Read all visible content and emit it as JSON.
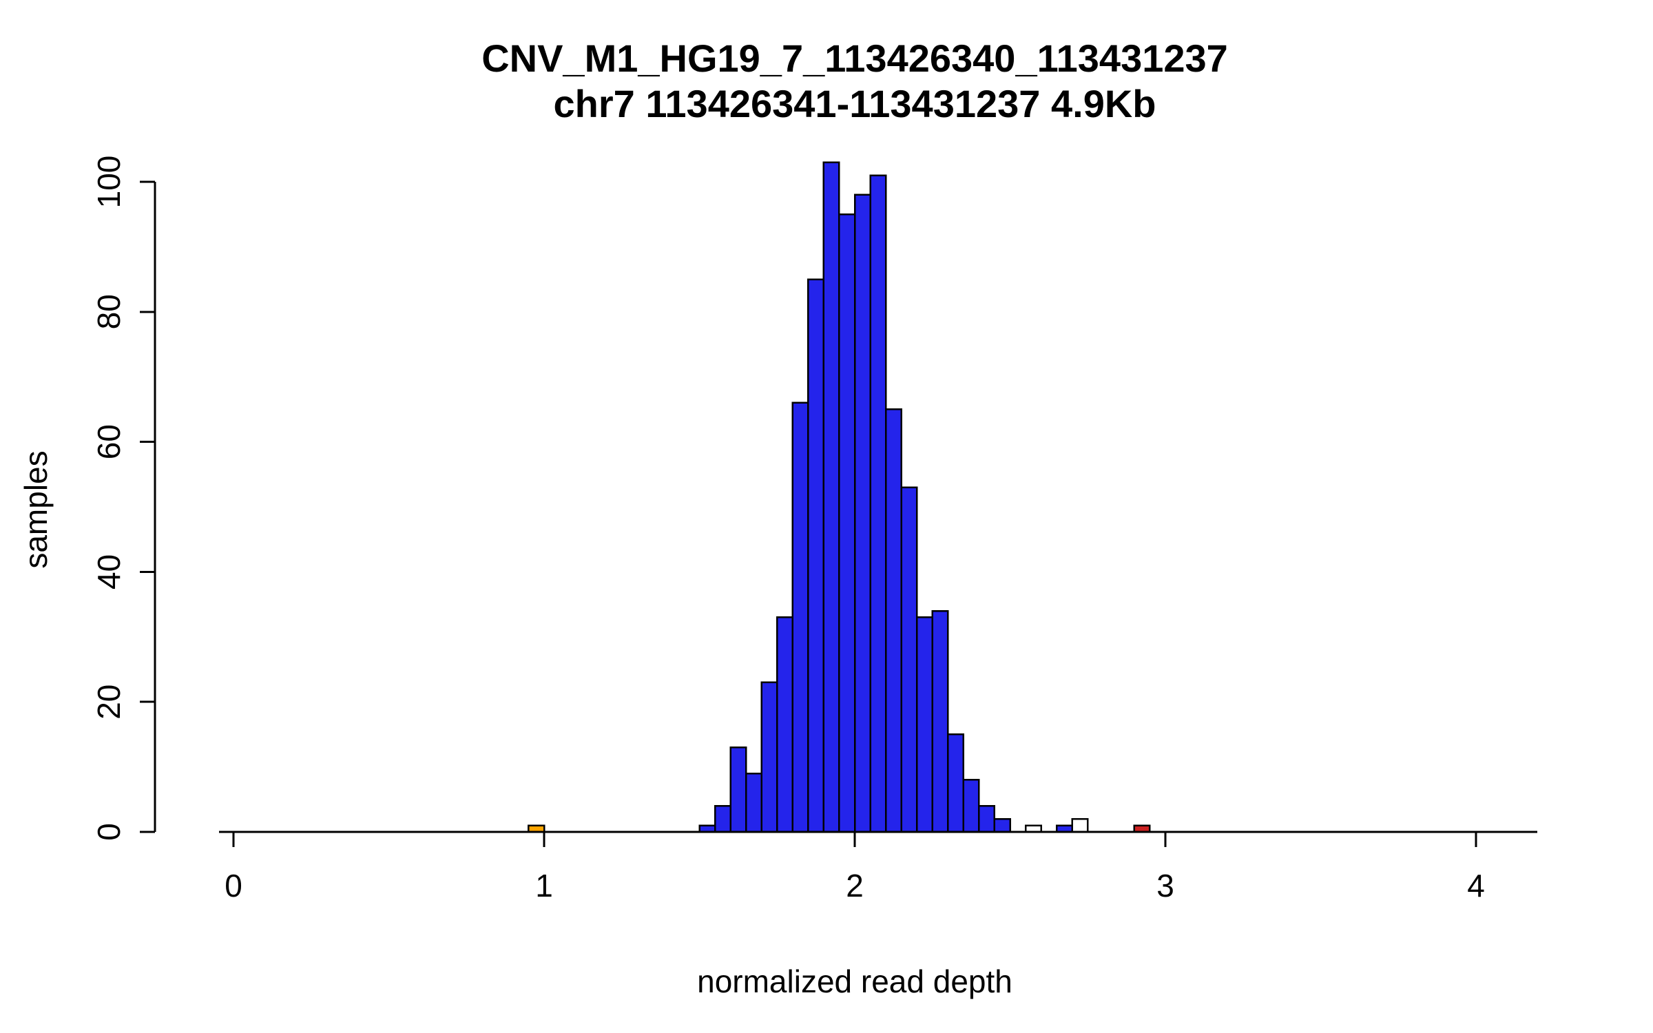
{
  "figure": {
    "title": "CNV_M1_HG19_7_113426340_113431237",
    "subtitle": "chr7 113426341-113431237 4.9Kb",
    "xlabel": "normalized read depth",
    "ylabel": "samples"
  },
  "chart_data": {
    "type": "bar",
    "subtype": "histogram",
    "title": "CNV_M1_HG19_7_113426340_113431237",
    "subtitle": "chr7 113426341-113431237 4.9Kb",
    "xlabel": "normalized read depth",
    "ylabel": "samples",
    "xlim": [
      0,
      4.2
    ],
    "ylim": [
      0,
      100
    ],
    "x_ticks": [
      0,
      1,
      2,
      3,
      4
    ],
    "y_ticks": [
      0,
      20,
      40,
      60,
      80,
      100
    ],
    "grid": false,
    "legend": "none",
    "bin_width": 0.05,
    "colors": {
      "blue": "#2424EB",
      "orange": "#FFA500",
      "red": "#CC2222",
      "white": "#FFFFFF",
      "axis": "#000000"
    },
    "bins": [
      {
        "x": 0.95,
        "count": 1,
        "color": "orange"
      },
      {
        "x": 1.5,
        "count": 1,
        "color": "blue"
      },
      {
        "x": 1.55,
        "count": 4,
        "color": "blue"
      },
      {
        "x": 1.6,
        "count": 13,
        "color": "blue"
      },
      {
        "x": 1.65,
        "count": 9,
        "color": "blue"
      },
      {
        "x": 1.7,
        "count": 23,
        "color": "blue"
      },
      {
        "x": 1.75,
        "count": 33,
        "color": "blue"
      },
      {
        "x": 1.8,
        "count": 66,
        "color": "blue"
      },
      {
        "x": 1.85,
        "count": 85,
        "color": "blue"
      },
      {
        "x": 1.9,
        "count": 103,
        "color": "blue"
      },
      {
        "x": 1.95,
        "count": 95,
        "color": "blue"
      },
      {
        "x": 2.0,
        "count": 98,
        "color": "blue"
      },
      {
        "x": 2.05,
        "count": 101,
        "color": "blue"
      },
      {
        "x": 2.1,
        "count": 65,
        "color": "blue"
      },
      {
        "x": 2.15,
        "count": 53,
        "color": "blue"
      },
      {
        "x": 2.2,
        "count": 33,
        "color": "blue"
      },
      {
        "x": 2.25,
        "count": 34,
        "color": "blue"
      },
      {
        "x": 2.3,
        "count": 15,
        "color": "blue"
      },
      {
        "x": 2.35,
        "count": 8,
        "color": "blue"
      },
      {
        "x": 2.4,
        "count": 4,
        "color": "blue"
      },
      {
        "x": 2.45,
        "count": 2,
        "color": "blue"
      },
      {
        "x": 2.55,
        "count": 1,
        "color": "white"
      },
      {
        "x": 2.65,
        "count": 1,
        "color": "blue"
      },
      {
        "x": 2.7,
        "count": 2,
        "color": "white"
      },
      {
        "x": 2.9,
        "count": 1,
        "color": "red"
      }
    ]
  }
}
